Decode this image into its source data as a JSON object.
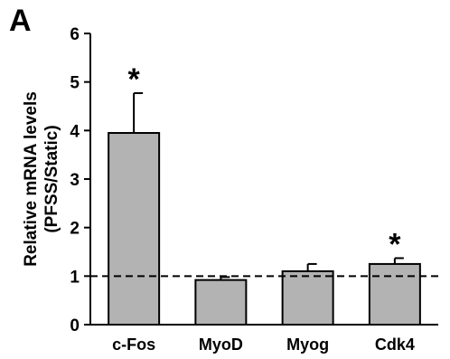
{
  "panel_label": "A",
  "chart_data": {
    "type": "bar",
    "categories": [
      "c-Fos",
      "MyoD",
      "Myog",
      "Cdk4"
    ],
    "values": [
      3.95,
      0.92,
      1.1,
      1.25
    ],
    "errors": [
      0.82,
      0.06,
      0.15,
      0.12
    ],
    "significant": [
      "*",
      "",
      "",
      "*"
    ],
    "ylabel_line1": "Relative mRNA levels",
    "ylabel_line2": "(PFSS/Static)",
    "ylim": [
      0,
      6
    ],
    "yticks": [
      0,
      1,
      2,
      3,
      4,
      5,
      6
    ],
    "reference_line": 1,
    "bar_color": "#b3b3b3",
    "grid": false
  }
}
